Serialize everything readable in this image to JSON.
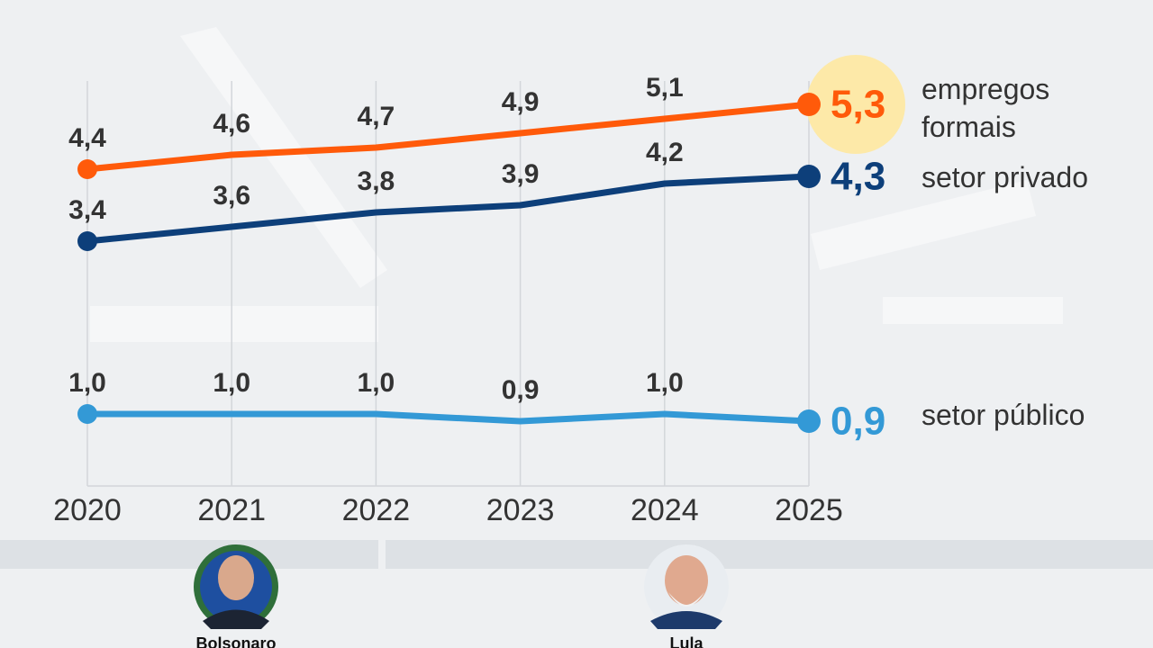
{
  "chart_data": {
    "type": "line",
    "x": [
      "2020",
      "2021",
      "2022",
      "2023",
      "2024",
      "2025"
    ],
    "series": [
      {
        "name": "empregos formais",
        "color": "#ff5a0a",
        "values": [
          4.4,
          4.6,
          4.7,
          4.9,
          5.1,
          5.3
        ],
        "value_labels": [
          "4,4",
          "4,6",
          "4,7",
          "4,9",
          "5,1",
          "5,3"
        ]
      },
      {
        "name": "setor privado",
        "color": "#0d3f7a",
        "values": [
          3.4,
          3.6,
          3.8,
          3.9,
          4.2,
          4.3
        ],
        "value_labels": [
          "3,4",
          "3,6",
          "3,8",
          "3,9",
          "4,2",
          "4,3"
        ]
      },
      {
        "name": "setor público",
        "color": "#3399d6",
        "values": [
          1.0,
          1.0,
          1.0,
          0.9,
          1.0,
          0.9
        ],
        "value_labels": [
          "1,0",
          "1,0",
          "1,0",
          "0,9",
          "1,0",
          "0,9"
        ]
      }
    ],
    "grid": true,
    "periods": [
      {
        "label": "Bolsonaro"
      },
      {
        "label": "Lula"
      }
    ]
  }
}
